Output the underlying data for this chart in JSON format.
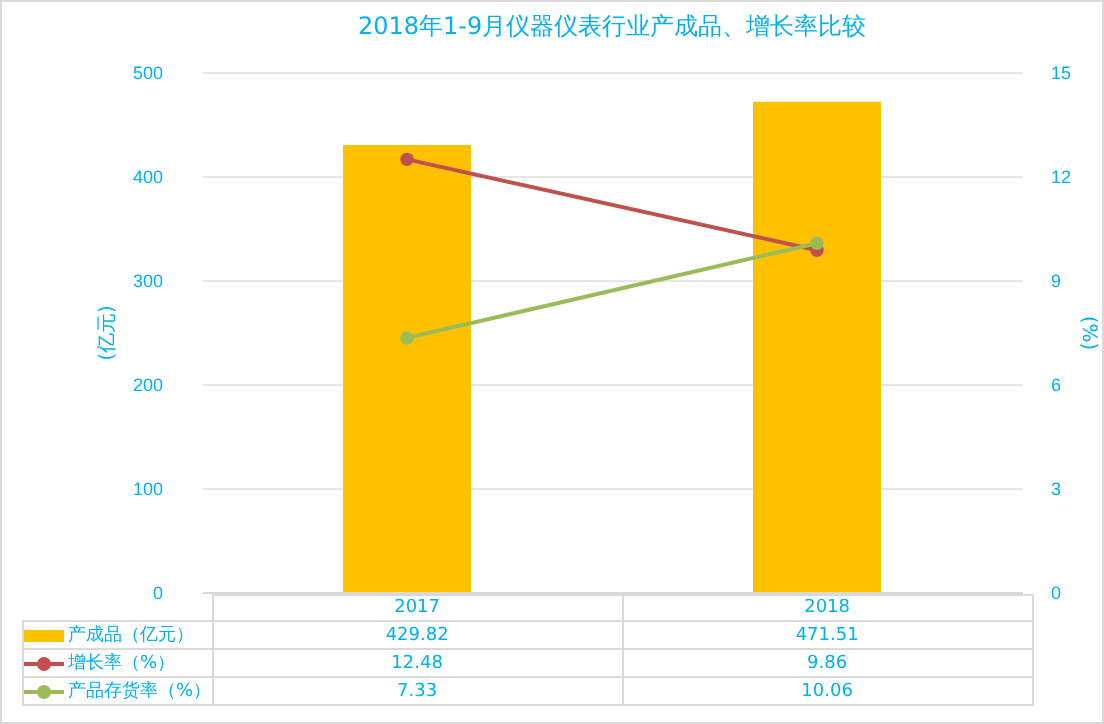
{
  "chart_data": {
    "type": "bar",
    "title": "2018年1-9月仪器仪表行业产成品、增长率比较",
    "categories": [
      "2017",
      "2018"
    ],
    "series": [
      {
        "name": "产成品（亿元）",
        "color": "#ffc000",
        "values": [
          429.82,
          471.51
        ]
      },
      {
        "name": "增长率（%）",
        "type": "line",
        "axis": "y2",
        "color": "#c0504d",
        "values": [
          12.48,
          9.86
        ]
      },
      {
        "name": "产品存货率（%）",
        "type": "line",
        "axis": "y2",
        "color": "#9bbb59",
        "values": [
          7.33,
          10.06
        ]
      }
    ],
    "ylabel": "(亿元)",
    "y2label": "(%)",
    "ylim": [
      0,
      500
    ],
    "yticks": [
      0,
      100,
      200,
      300,
      400,
      500
    ],
    "y2lim": [
      0,
      15
    ],
    "y2ticks": [
      0,
      3,
      6,
      9,
      12,
      15
    ],
    "grid": "y",
    "legend": "bottom",
    "data_labels": true,
    "marker": "circle"
  }
}
